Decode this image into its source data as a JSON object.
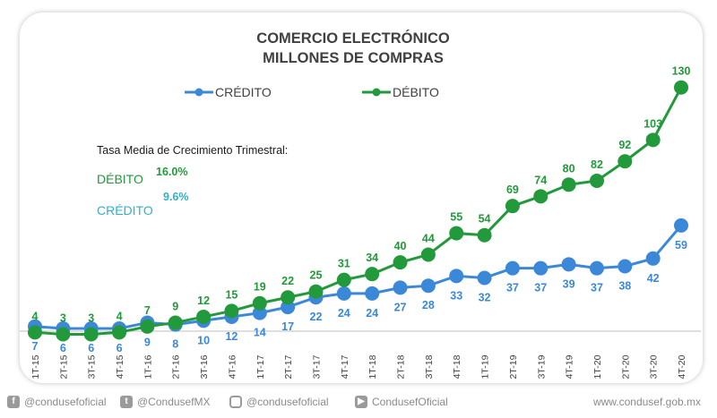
{
  "chart_data": {
    "type": "line",
    "title": [
      "COMERCIO ELECTRÓNICO",
      "MILLONES DE COMPRAS"
    ],
    "categories": [
      "1T-15",
      "2T-15",
      "3T-15",
      "4T-15",
      "1T-16",
      "2T-16",
      "3T-16",
      "4T-16",
      "1T-17",
      "2T-17",
      "3T-17",
      "4T-17",
      "1T-18",
      "2T-18",
      "3T-18",
      "4T-18",
      "1T-19",
      "2T-19",
      "3T-19",
      "4T-19",
      "1T-20",
      "2T-20",
      "3T-20",
      "4T-20"
    ],
    "series": [
      {
        "name": "CRÉDITO",
        "color": "#3b88d8",
        "values": [
          7,
          6,
          6,
          6,
          9,
          8,
          10,
          12,
          14,
          17,
          22,
          24,
          24,
          27,
          28,
          33,
          32,
          37,
          37,
          39,
          37,
          38,
          42,
          59
        ]
      },
      {
        "name": "DÉBITO",
        "color": "#22993a",
        "values": [
          4,
          3,
          3,
          4,
          7,
          9,
          12,
          15,
          19,
          22,
          25,
          31,
          34,
          40,
          44,
          55,
          54,
          69,
          74,
          80,
          82,
          92,
          103,
          130
        ]
      }
    ],
    "ylim": [
      0,
      140
    ],
    "legend_position": "top",
    "grid": false,
    "annotation": {
      "heading": "Tasa Media de Crecimiento Trimestral:",
      "debito_label": "DÉBITO",
      "debito_rate": "16.0%",
      "credito_label": "CRÉDITO",
      "credito_rate": "9.6%"
    }
  },
  "footer": {
    "facebook": "@condusefoficial",
    "twitter": "@CondusefMX",
    "instagram": "@condusefoficial",
    "youtube": "CondusefOficial",
    "website": "www.condusef.gob.mx"
  }
}
